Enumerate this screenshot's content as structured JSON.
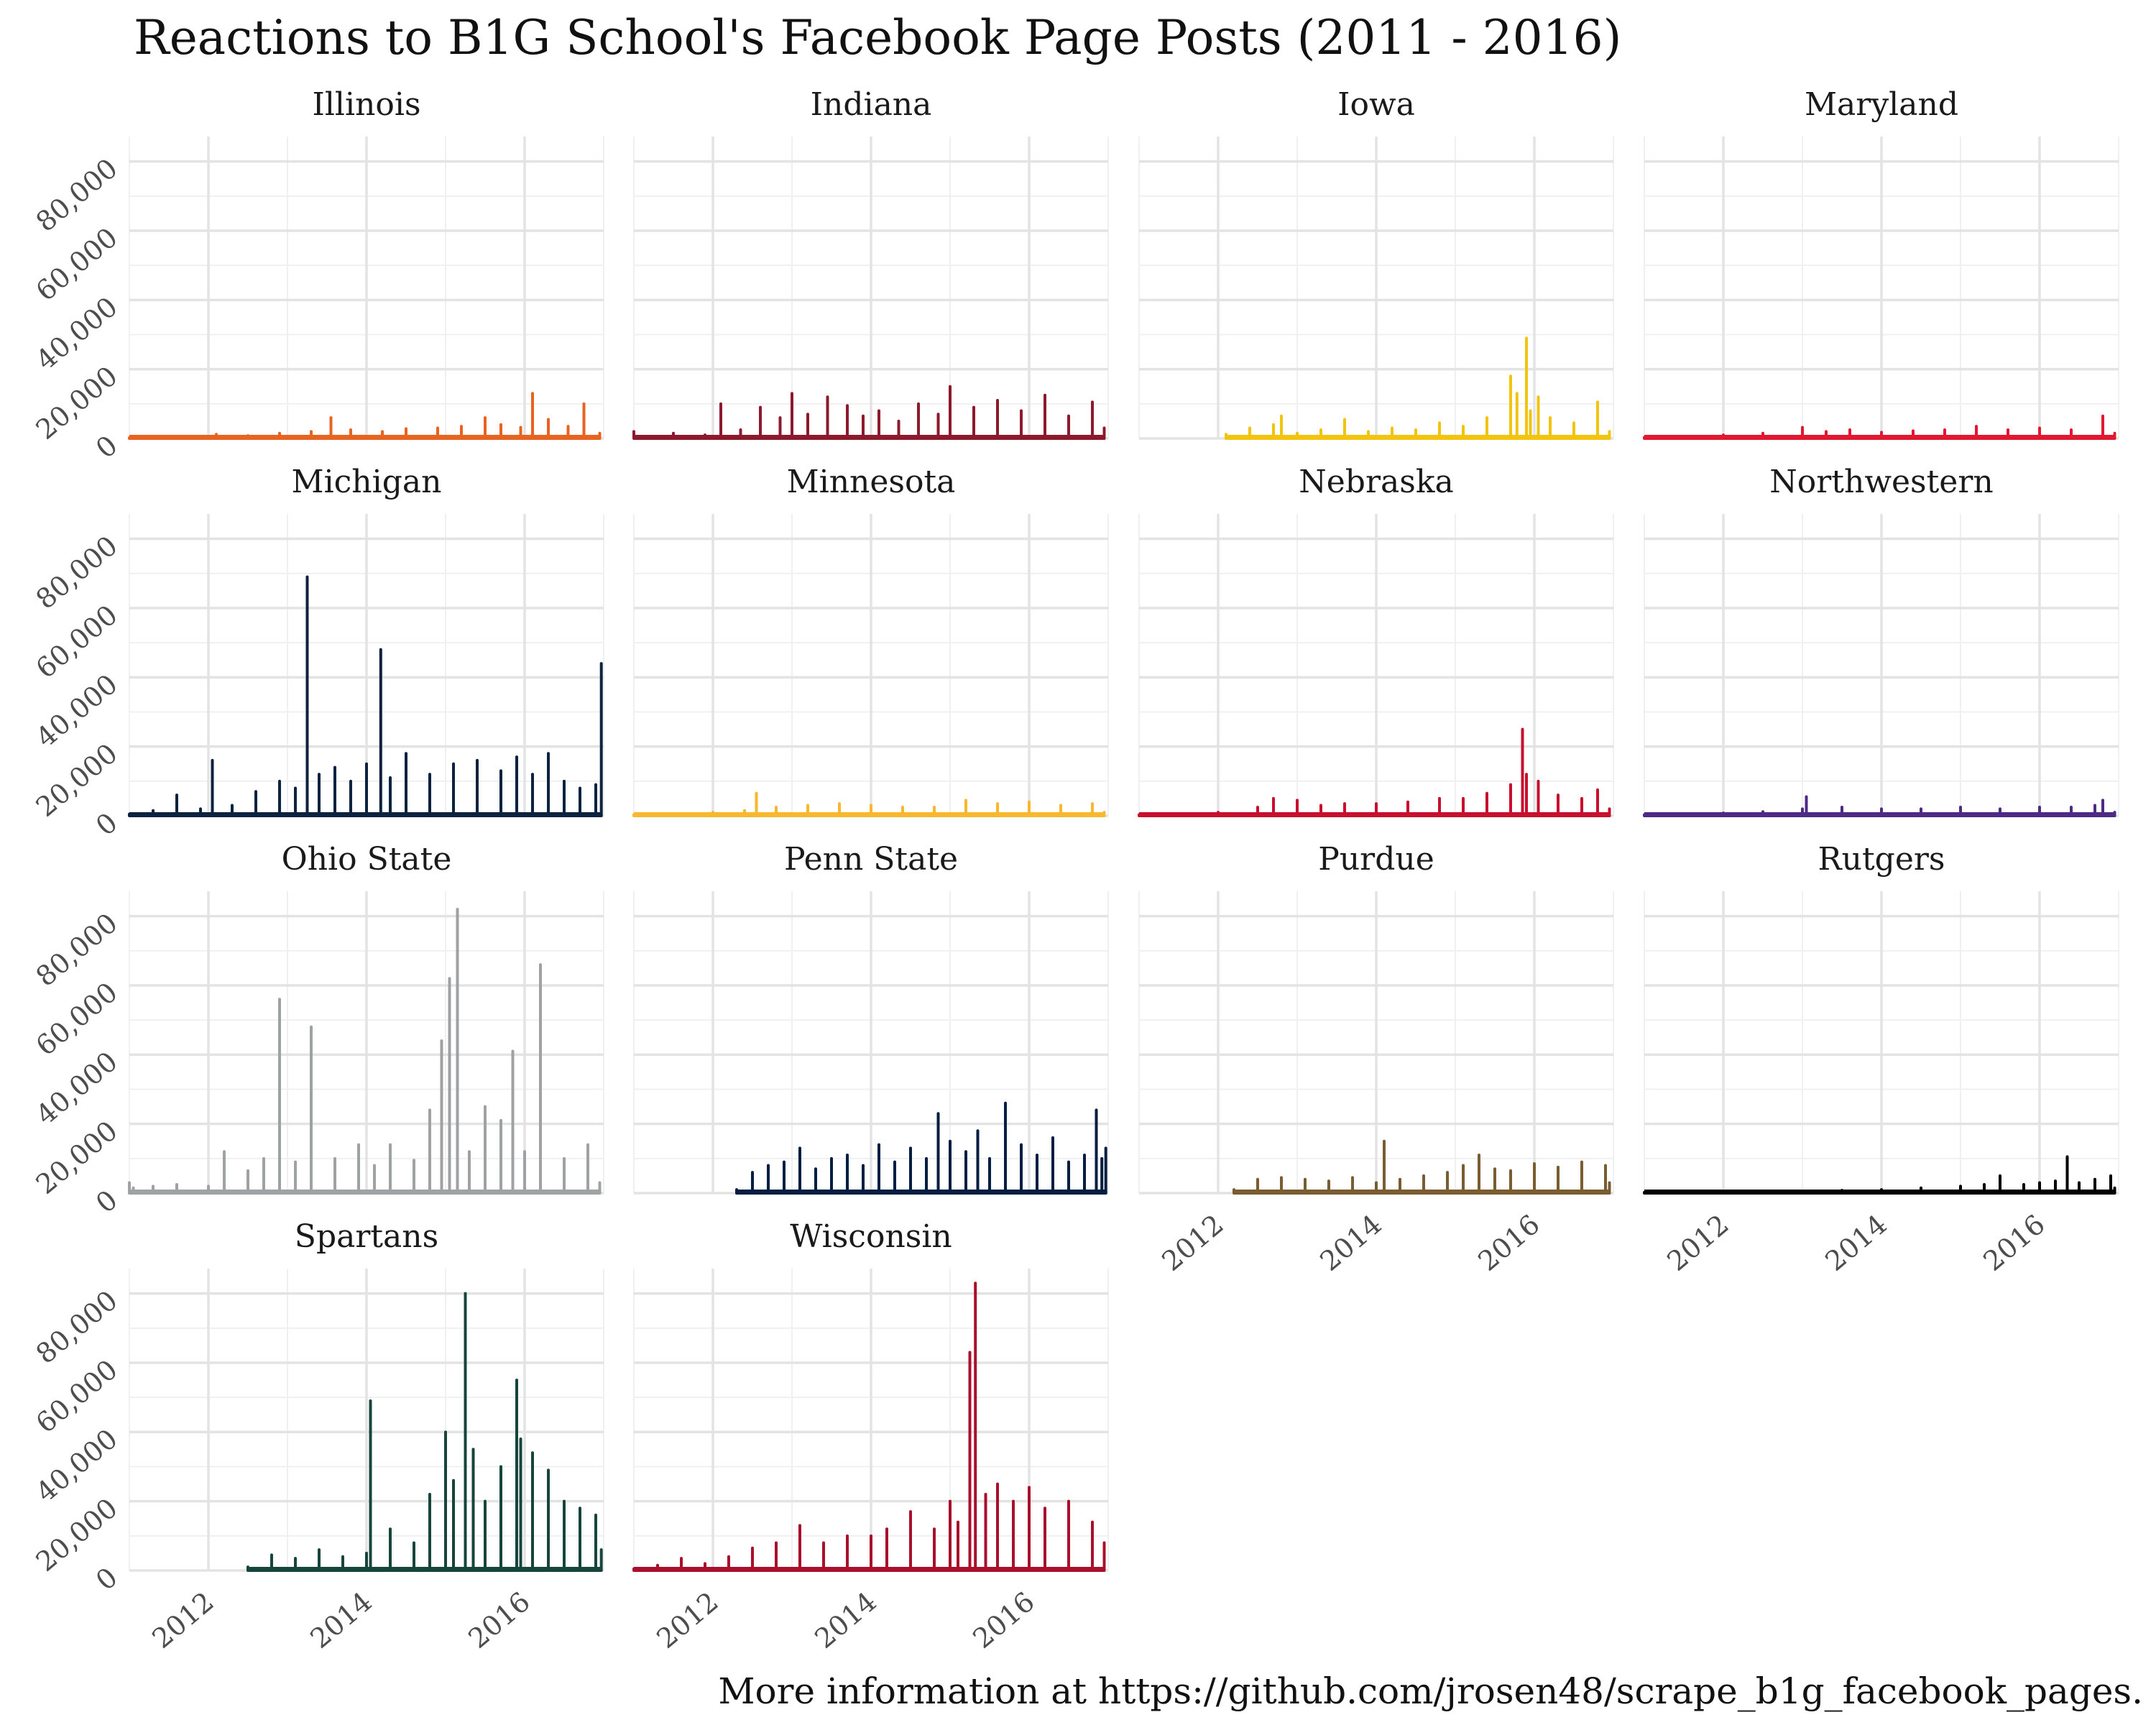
{
  "title": "Reactions to B1G School's Facebook Page Posts (2011 - 2016)",
  "caption": "More information at https://github.com/jrosen48/scrape_b1g_facebook_pages.",
  "chart_data": {
    "type": "line",
    "layout": "facet-wrap, 4 columns",
    "x_range": [
      2011,
      2017
    ],
    "ylim": [
      0,
      80000
    ],
    "y_ticks": [
      0,
      20000,
      40000,
      60000,
      80000
    ],
    "y_tick_labels": [
      "0",
      "20,000",
      "40,000",
      "60,000",
      "80,000"
    ],
    "x_ticks": [
      2012,
      2014,
      2016
    ],
    "x_tick_labels": [
      "2012",
      "2014",
      "2016"
    ],
    "grid": true,
    "series": [
      {
        "name": "Illinois",
        "color": "#e8631f",
        "x": [
          2011.0,
          2011.4,
          2011.8,
          2012.1,
          2012.5,
          2012.9,
          2013.3,
          2013.55,
          2013.8,
          2014.2,
          2014.5,
          2014.9,
          2015.2,
          2015.5,
          2015.7,
          2015.95,
          2016.1,
          2016.3,
          2016.55,
          2016.75,
          2016.95
        ],
        "y": [
          200,
          400,
          500,
          1200,
          800,
          1500,
          2000,
          6000,
          2500,
          2000,
          2800,
          3000,
          3500,
          6000,
          4000,
          3200,
          13000,
          5500,
          3500,
          10000,
          1500
        ]
      },
      {
        "name": "Indiana",
        "color": "#8c1a2c",
        "x": [
          2011.0,
          2011.2,
          2011.5,
          2011.9,
          2012.1,
          2012.35,
          2012.6,
          2012.85,
          2013.0,
          2013.2,
          2013.45,
          2013.7,
          2013.9,
          2014.1,
          2014.35,
          2014.6,
          2014.85,
          2015.0,
          2015.3,
          2015.6,
          2015.9,
          2016.2,
          2016.5,
          2016.8,
          2016.95
        ],
        "y": [
          2000,
          500,
          1500,
          1000,
          10000,
          2500,
          9000,
          6000,
          13000,
          7000,
          12000,
          9500,
          6500,
          8000,
          5000,
          10000,
          7000,
          15000,
          9000,
          11000,
          8000,
          12500,
          6500,
          10500,
          3000
        ]
      },
      {
        "name": "Iowa",
        "color": "#f2c40f",
        "x": [
          2012.1,
          2012.4,
          2012.7,
          2012.8,
          2013.0,
          2013.3,
          2013.6,
          2013.9,
          2014.2,
          2014.5,
          2014.8,
          2015.1,
          2015.4,
          2015.7,
          2015.78,
          2015.9,
          2015.95,
          2016.05,
          2016.2,
          2016.5,
          2016.8,
          2016.95
        ],
        "y": [
          1200,
          3000,
          4000,
          6500,
          1500,
          2500,
          5500,
          2000,
          3000,
          2500,
          4500,
          3500,
          6000,
          18000,
          13000,
          29000,
          8000,
          12000,
          6000,
          4500,
          10500,
          2000
        ]
      },
      {
        "name": "Maryland",
        "color": "#e21833",
        "x": [
          2011.0,
          2011.5,
          2012.0,
          2012.5,
          2013.0,
          2013.3,
          2013.6,
          2014.0,
          2014.4,
          2014.8,
          2015.2,
          2015.6,
          2016.0,
          2016.4,
          2016.8,
          2016.95
        ],
        "y": [
          300,
          600,
          1000,
          1500,
          3200,
          2000,
          2500,
          1800,
          2200,
          2500,
          3500,
          2500,
          3000,
          2500,
          6500,
          1500
        ]
      },
      {
        "name": "Michigan",
        "color": "#0c223f",
        "x": [
          2011.0,
          2011.3,
          2011.6,
          2011.9,
          2012.05,
          2012.3,
          2012.6,
          2012.9,
          2013.1,
          2013.25,
          2013.4,
          2013.6,
          2013.8,
          2014.0,
          2014.18,
          2014.3,
          2014.5,
          2014.8,
          2015.1,
          2015.4,
          2015.7,
          2015.9,
          2016.1,
          2016.3,
          2016.5,
          2016.7,
          2016.9,
          2016.97
        ],
        "y": [
          500,
          1500,
          6000,
          2000,
          16000,
          3000,
          7000,
          10000,
          8000,
          69000,
          12000,
          14000,
          10000,
          15000,
          48000,
          11000,
          18000,
          12000,
          15000,
          16000,
          13000,
          17000,
          12000,
          18000,
          10000,
          8000,
          9000,
          44000
        ]
      },
      {
        "name": "Minnesota",
        "color": "#f7b82e",
        "x": [
          2011.0,
          2011.5,
          2012.0,
          2012.4,
          2012.55,
          2012.8,
          2013.2,
          2013.6,
          2014.0,
          2014.4,
          2014.8,
          2015.2,
          2015.6,
          2016.0,
          2016.4,
          2016.8,
          2016.95
        ],
        "y": [
          300,
          500,
          1000,
          1500,
          6500,
          2500,
          3000,
          3500,
          3000,
          2500,
          2500,
          4500,
          3500,
          4000,
          3000,
          3500,
          1000
        ]
      },
      {
        "name": "Nebraska",
        "color": "#c8102e",
        "x": [
          2011.0,
          2011.5,
          2012.0,
          2012.5,
          2012.7,
          2013.0,
          2013.3,
          2013.6,
          2014.0,
          2014.4,
          2014.8,
          2015.1,
          2015.4,
          2015.7,
          2015.85,
          2015.9,
          2016.05,
          2016.3,
          2016.6,
          2016.8,
          2016.95
        ],
        "y": [
          300,
          600,
          1000,
          2500,
          5000,
          4500,
          3000,
          3500,
          3500,
          4000,
          5000,
          5000,
          6500,
          9000,
          25000,
          12000,
          10000,
          6000,
          5000,
          7500,
          2000
        ]
      },
      {
        "name": "Northwestern",
        "color": "#4e2a84",
        "x": [
          2011.0,
          2011.5,
          2012.0,
          2012.5,
          2013.0,
          2013.05,
          2013.5,
          2014.0,
          2014.5,
          2015.0,
          2015.5,
          2016.0,
          2016.4,
          2016.7,
          2016.8,
          2016.95
        ],
        "y": [
          300,
          500,
          800,
          1200,
          2000,
          5500,
          2500,
          2000,
          2000,
          2500,
          2000,
          2500,
          2500,
          3000,
          4500,
          1000
        ]
      },
      {
        "name": "Ohio State",
        "color": "#9ea2a2",
        "x": [
          2011.0,
          2011.05,
          2011.3,
          2011.6,
          2012.0,
          2012.2,
          2012.5,
          2012.7,
          2012.9,
          2013.1,
          2013.3,
          2013.6,
          2013.9,
          2014.1,
          2014.3,
          2014.6,
          2014.8,
          2014.95,
          2015.05,
          2015.15,
          2015.3,
          2015.5,
          2015.7,
          2015.85,
          2016.0,
          2016.2,
          2016.5,
          2016.8,
          2016.95
        ],
        "y": [
          3000,
          1500,
          2000,
          2500,
          2000,
          12000,
          6500,
          10000,
          56000,
          9000,
          48000,
          10000,
          14000,
          8000,
          14000,
          9500,
          24000,
          44000,
          62000,
          82000,
          12000,
          25000,
          21000,
          41000,
          12000,
          66000,
          10000,
          14000,
          3000
        ]
      },
      {
        "name": "Penn State",
        "color": "#041e42",
        "x": [
          2012.3,
          2012.5,
          2012.7,
          2012.9,
          2013.1,
          2013.3,
          2013.5,
          2013.7,
          2013.9,
          2014.1,
          2014.3,
          2014.5,
          2014.7,
          2014.85,
          2015.0,
          2015.2,
          2015.35,
          2015.5,
          2015.7,
          2015.9,
          2016.1,
          2016.3,
          2016.5,
          2016.7,
          2016.85,
          2016.92,
          2016.97
        ],
        "y": [
          1000,
          6000,
          8000,
          9000,
          13000,
          7000,
          10000,
          11000,
          8000,
          14000,
          9000,
          13000,
          10000,
          23000,
          15000,
          12000,
          18000,
          10000,
          26000,
          14000,
          11000,
          16000,
          9000,
          11000,
          24000,
          10000,
          13000
        ]
      },
      {
        "name": "Purdue",
        "color": "#7a5c32",
        "x": [
          2012.2,
          2012.5,
          2012.8,
          2013.1,
          2013.4,
          2013.7,
          2014.0,
          2014.1,
          2014.3,
          2014.6,
          2014.9,
          2015.1,
          2015.3,
          2015.5,
          2015.7,
          2016.0,
          2016.3,
          2016.6,
          2016.9,
          2016.95
        ],
        "y": [
          1000,
          4000,
          4500,
          4000,
          3500,
          4500,
          3000,
          15000,
          4000,
          5000,
          6000,
          8000,
          11000,
          7000,
          6500,
          8500,
          7500,
          9000,
          8000,
          3000
        ]
      },
      {
        "name": "Rutgers",
        "color": "#000000",
        "x": [
          2011.0,
          2011.5,
          2012.0,
          2012.5,
          2013.0,
          2013.5,
          2014.0,
          2014.5,
          2015.0,
          2015.3,
          2015.5,
          2015.8,
          2016.0,
          2016.2,
          2016.35,
          2016.5,
          2016.7,
          2016.9,
          2016.95
        ],
        "y": [
          200,
          300,
          400,
          500,
          600,
          800,
          1000,
          1500,
          2000,
          2500,
          5000,
          2500,
          3000,
          3500,
          10500,
          3000,
          4000,
          5000,
          1500
        ]
      },
      {
        "name": "Spartans",
        "color": "#18453b",
        "x": [
          2012.5,
          2012.8,
          2013.1,
          2013.4,
          2013.7,
          2014.0,
          2014.05,
          2014.3,
          2014.6,
          2014.8,
          2015.0,
          2015.1,
          2015.25,
          2015.35,
          2015.5,
          2015.7,
          2015.9,
          2015.95,
          2016.1,
          2016.3,
          2016.5,
          2016.7,
          2016.9,
          2016.97
        ],
        "y": [
          1000,
          4500,
          3500,
          6000,
          4000,
          5000,
          49000,
          12000,
          8000,
          22000,
          40000,
          26000,
          80000,
          35000,
          20000,
          30000,
          55000,
          38000,
          34000,
          29000,
          20000,
          18000,
          16000,
          6000
        ]
      },
      {
        "name": "Wisconsin",
        "color": "#a8102c",
        "x": [
          2011.0,
          2011.3,
          2011.6,
          2011.9,
          2012.2,
          2012.5,
          2012.8,
          2013.1,
          2013.4,
          2013.7,
          2014.0,
          2014.2,
          2014.5,
          2014.8,
          2015.0,
          2015.1,
          2015.25,
          2015.32,
          2015.45,
          2015.6,
          2015.8,
          2016.0,
          2016.2,
          2016.5,
          2016.8,
          2016.95
        ],
        "y": [
          500,
          1500,
          3500,
          2000,
          4000,
          6500,
          8000,
          13000,
          8000,
          10000,
          10000,
          12000,
          17000,
          12000,
          20000,
          14000,
          63000,
          83000,
          22000,
          25000,
          20000,
          24000,
          18000,
          20000,
          14000,
          8000
        ]
      }
    ]
  }
}
